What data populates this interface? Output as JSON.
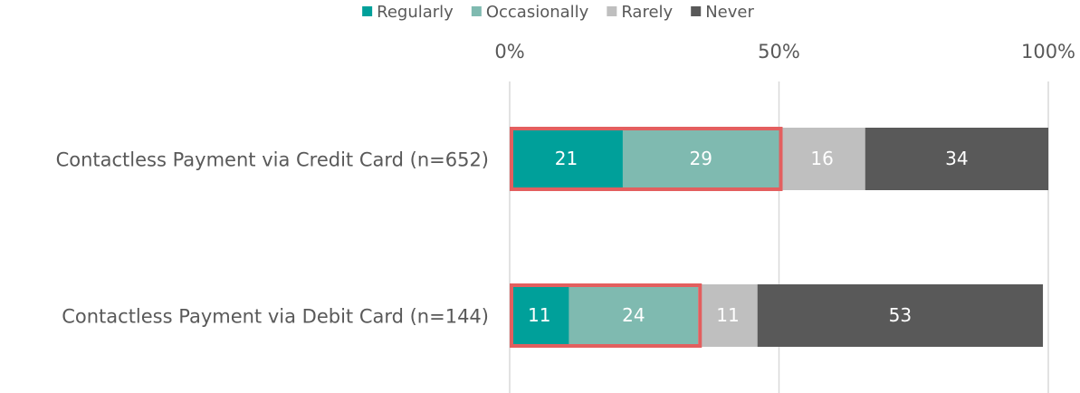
{
  "chart_data": {
    "type": "stacked_barh",
    "categories": [
      "Contactless Payment via Credit Card (n=652)",
      "Contactless Payment via Debit Card (n=144)"
    ],
    "series": [
      {
        "name": "Regularly",
        "color": "#00a09a",
        "values": [
          21,
          11
        ]
      },
      {
        "name": "Occasionally",
        "color": "#7fbab0",
        "values": [
          29,
          24
        ]
      },
      {
        "name": "Rarely",
        "color": "#bfbfbf",
        "values": [
          16,
          11
        ]
      },
      {
        "name": "Never",
        "color": "#595959",
        "values": [
          34,
          53
        ]
      }
    ],
    "xlim": [
      0,
      100
    ],
    "xticks": [
      {
        "value": 0,
        "label": "0%"
      },
      {
        "value": 50,
        "label": "50%"
      },
      {
        "value": 100,
        "label": "100%"
      }
    ],
    "grid": true,
    "legend": "top"
  }
}
